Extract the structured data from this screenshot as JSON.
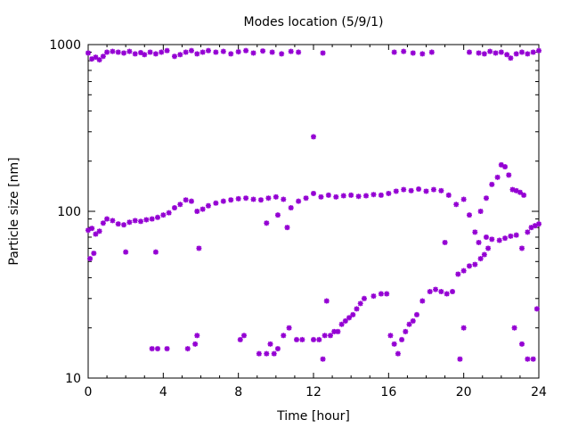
{
  "chart_data": {
    "type": "scatter",
    "title": "Modes location (5/9/1)",
    "xlabel": "Time [hour]",
    "ylabel": "Particle size [nm]",
    "xlim": [
      0,
      24
    ],
    "ylim": [
      10,
      1000
    ],
    "y_scale": "log",
    "grid": false,
    "legend": "none",
    "marker_color": "#9400d3",
    "x_ticks": [
      {
        "value": 0,
        "label": "0"
      },
      {
        "value": 4,
        "label": "4"
      },
      {
        "value": 8,
        "label": "8"
      },
      {
        "value": 12,
        "label": "12"
      },
      {
        "value": 16,
        "label": "16"
      },
      {
        "value": 20,
        "label": "20"
      },
      {
        "value": 24,
        "label": "24"
      }
    ],
    "y_ticks": [
      {
        "value": 10,
        "label": "10"
      },
      {
        "value": 100,
        "label": "100"
      },
      {
        "value": 1000,
        "label": "1000"
      }
    ],
    "series": [
      {
        "points": [
          [
            0.0,
            890
          ],
          [
            0.2,
            820
          ],
          [
            0.4,
            840
          ],
          [
            0.6,
            810
          ],
          [
            0.8,
            850
          ],
          [
            1.0,
            900
          ],
          [
            1.3,
            910
          ],
          [
            1.6,
            900
          ],
          [
            1.9,
            890
          ],
          [
            2.2,
            910
          ],
          [
            2.5,
            880
          ],
          [
            2.8,
            895
          ],
          [
            3.0,
            870
          ],
          [
            3.3,
            900
          ],
          [
            3.6,
            880
          ],
          [
            3.9,
            900
          ],
          [
            4.2,
            920
          ],
          [
            4.6,
            850
          ],
          [
            4.9,
            870
          ],
          [
            5.2,
            900
          ],
          [
            5.5,
            920
          ],
          [
            5.8,
            880
          ],
          [
            6.1,
            900
          ],
          [
            6.4,
            920
          ],
          [
            6.8,
            900
          ],
          [
            7.2,
            910
          ],
          [
            7.6,
            880
          ],
          [
            8.0,
            905
          ],
          [
            8.4,
            920
          ],
          [
            8.8,
            890
          ],
          [
            9.3,
            915
          ],
          [
            9.8,
            900
          ],
          [
            10.3,
            880
          ],
          [
            10.8,
            910
          ],
          [
            11.2,
            900
          ],
          [
            12.5,
            890
          ],
          [
            16.3,
            900
          ],
          [
            16.8,
            910
          ],
          [
            17.3,
            890
          ],
          [
            17.8,
            880
          ],
          [
            18.3,
            900
          ],
          [
            20.3,
            900
          ],
          [
            20.8,
            890
          ],
          [
            21.1,
            880
          ],
          [
            21.4,
            910
          ],
          [
            21.7,
            890
          ],
          [
            22.0,
            900
          ],
          [
            22.3,
            870
          ],
          [
            22.5,
            830
          ],
          [
            22.8,
            880
          ],
          [
            23.1,
            900
          ],
          [
            23.4,
            880
          ],
          [
            23.7,
            900
          ],
          [
            24.0,
            920
          ]
        ]
      },
      {
        "points": [
          [
            0.0,
            77
          ],
          [
            0.2,
            79
          ],
          [
            0.4,
            73
          ],
          [
            0.6,
            76
          ],
          [
            0.8,
            85
          ],
          [
            1.0,
            90
          ],
          [
            1.3,
            88
          ],
          [
            1.6,
            84
          ],
          [
            1.9,
            83
          ],
          [
            2.2,
            86
          ],
          [
            2.5,
            88
          ],
          [
            2.8,
            87
          ],
          [
            3.1,
            89
          ],
          [
            3.4,
            90
          ],
          [
            3.7,
            92
          ],
          [
            4.0,
            95
          ],
          [
            4.3,
            98
          ],
          [
            4.6,
            105
          ],
          [
            4.9,
            110
          ],
          [
            5.2,
            117
          ],
          [
            5.5,
            115
          ],
          [
            5.8,
            100
          ],
          [
            6.1,
            103
          ],
          [
            6.4,
            108
          ],
          [
            6.8,
            112
          ],
          [
            7.2,
            115
          ],
          [
            7.6,
            117
          ],
          [
            8.0,
            119
          ],
          [
            8.4,
            120
          ],
          [
            8.8,
            118
          ],
          [
            9.2,
            117
          ],
          [
            9.6,
            120
          ],
          [
            10.0,
            122
          ],
          [
            10.4,
            118
          ],
          [
            10.8,
            105
          ],
          [
            11.2,
            115
          ],
          [
            11.6,
            120
          ],
          [
            12.0,
            128
          ],
          [
            12.4,
            122
          ],
          [
            12.8,
            125
          ],
          [
            13.2,
            122
          ],
          [
            13.6,
            124
          ],
          [
            14.0,
            125
          ],
          [
            14.4,
            123
          ],
          [
            14.8,
            124
          ],
          [
            15.2,
            126
          ],
          [
            15.6,
            125
          ],
          [
            16.0,
            128
          ],
          [
            16.4,
            132
          ],
          [
            16.8,
            135
          ],
          [
            17.2,
            133
          ],
          [
            17.6,
            136
          ],
          [
            18.0,
            132
          ],
          [
            18.4,
            135
          ],
          [
            18.8,
            133
          ],
          [
            19.2,
            125
          ],
          [
            19.6,
            110
          ],
          [
            20.0,
            118
          ],
          [
            20.3,
            95
          ],
          [
            20.6,
            75
          ],
          [
            20.9,
            100
          ],
          [
            21.2,
            120
          ],
          [
            21.5,
            145
          ],
          [
            21.8,
            160
          ],
          [
            22.0,
            190
          ],
          [
            22.2,
            185
          ],
          [
            22.4,
            165
          ],
          [
            22.6,
            135
          ],
          [
            22.8,
            133
          ],
          [
            23.0,
            130
          ],
          [
            23.2,
            125
          ],
          [
            23.4,
            75
          ],
          [
            23.6,
            80
          ],
          [
            23.8,
            82
          ],
          [
            24.0,
            84
          ]
        ]
      },
      {
        "points": [
          [
            0.1,
            52
          ],
          [
            0.3,
            56
          ],
          [
            2.0,
            57
          ],
          [
            3.6,
            57
          ],
          [
            5.9,
            60
          ],
          [
            12.0,
            280
          ],
          [
            9.5,
            85
          ],
          [
            10.1,
            95
          ],
          [
            10.6,
            80
          ],
          [
            19.0,
            65
          ],
          [
            20.8,
            65
          ],
          [
            21.2,
            70
          ],
          [
            21.5,
            68
          ],
          [
            21.9,
            67
          ],
          [
            22.2,
            69
          ],
          [
            22.5,
            71
          ],
          [
            22.8,
            72
          ],
          [
            23.1,
            60
          ]
        ]
      },
      {
        "points": [
          [
            3.4,
            15
          ],
          [
            3.7,
            15
          ],
          [
            4.2,
            15
          ],
          [
            5.3,
            15
          ],
          [
            5.7,
            16
          ],
          [
            5.8,
            18
          ],
          [
            8.1,
            17
          ],
          [
            8.3,
            18
          ],
          [
            9.1,
            14
          ],
          [
            9.5,
            14
          ],
          [
            9.7,
            16
          ],
          [
            9.9,
            14
          ],
          [
            10.1,
            15
          ],
          [
            10.4,
            18
          ],
          [
            10.7,
            20
          ],
          [
            11.1,
            17
          ],
          [
            11.4,
            17
          ],
          [
            12.0,
            17
          ],
          [
            12.3,
            17
          ],
          [
            12.6,
            18
          ],
          [
            12.9,
            18
          ],
          [
            13.1,
            19
          ],
          [
            13.3,
            19
          ],
          [
            13.5,
            21
          ],
          [
            13.7,
            22
          ],
          [
            13.9,
            23
          ],
          [
            14.1,
            24
          ],
          [
            14.3,
            26
          ],
          [
            14.5,
            28
          ],
          [
            14.7,
            30
          ],
          [
            15.2,
            31
          ],
          [
            15.6,
            32
          ],
          [
            15.9,
            32
          ],
          [
            16.1,
            18
          ],
          [
            16.3,
            16
          ],
          [
            16.5,
            14
          ],
          [
            16.7,
            17
          ],
          [
            16.9,
            19
          ],
          [
            17.1,
            21
          ],
          [
            17.3,
            22
          ],
          [
            17.5,
            24
          ],
          [
            17.8,
            29
          ],
          [
            18.2,
            33
          ],
          [
            18.5,
            34
          ],
          [
            18.8,
            33
          ],
          [
            19.1,
            32
          ],
          [
            19.4,
            33
          ],
          [
            19.7,
            42
          ],
          [
            20.0,
            44
          ],
          [
            20.3,
            47
          ],
          [
            20.6,
            48
          ],
          [
            20.9,
            52
          ],
          [
            21.1,
            55
          ],
          [
            21.3,
            60
          ],
          [
            12.7,
            29
          ],
          [
            12.5,
            13
          ],
          [
            19.8,
            13
          ],
          [
            20.0,
            20
          ],
          [
            22.7,
            20
          ],
          [
            23.1,
            16
          ],
          [
            23.4,
            13
          ],
          [
            23.7,
            13
          ],
          [
            23.9,
            26
          ]
        ]
      }
    ]
  }
}
